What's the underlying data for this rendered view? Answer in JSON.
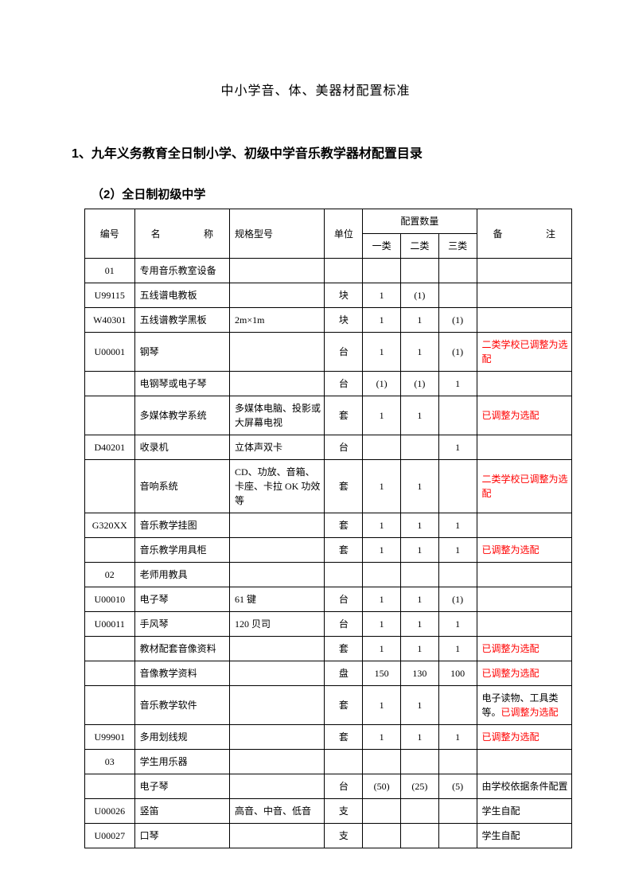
{
  "doc_title": "中小学音、体、美器材配置标准",
  "section_title": "1、九年义务教育全日制小学、初级中学音乐教学器材配置目录",
  "sub_title": "（2）全日制初级中学",
  "headers": {
    "id": "编号",
    "name": "名　　称",
    "spec": "规格型号",
    "unit": "单位",
    "qty_group": "配置数量",
    "qty1": "一类",
    "qty2": "二类",
    "qty3": "三类",
    "note": "备　　注"
  },
  "rows": [
    {
      "id": "01",
      "name": "专用音乐教室设备",
      "spec": "",
      "unit": "",
      "q1": "",
      "q2": "",
      "q3": "",
      "note": "",
      "noteType": "plain"
    },
    {
      "id": "U99115",
      "name": "五线谱电教板",
      "spec": "",
      "unit": "块",
      "q1": "1",
      "q2": "(1)",
      "q3": "",
      "note": "",
      "noteType": "plain"
    },
    {
      "id": "W40301",
      "name": "五线谱教学黑板",
      "spec": "2m×1m",
      "unit": "块",
      "q1": "1",
      "q2": "1",
      "q3": "(1)",
      "note": "",
      "noteType": "plain"
    },
    {
      "id": "U00001",
      "name": "钢琴",
      "spec": "",
      "unit": "台",
      "q1": "1",
      "q2": "1",
      "q3": "(1)",
      "note": "二类学校已调整为选配",
      "noteType": "red"
    },
    {
      "id": "",
      "name": "电钢琴或电子琴",
      "spec": "",
      "unit": "台",
      "q1": "(1)",
      "q2": "(1)",
      "q3": "1",
      "note": "",
      "noteType": "plain"
    },
    {
      "id": "",
      "name": "多媒体教学系统",
      "spec": "多媒体电脑、投影或大屏幕电视",
      "unit": "套",
      "q1": "1",
      "q2": "1",
      "q3": "",
      "note": "已调整为选配",
      "noteType": "red"
    },
    {
      "id": "D40201",
      "name": "收录机",
      "spec": "立体声双卡",
      "unit": "台",
      "q1": "",
      "q2": "",
      "q3": "1",
      "note": "",
      "noteType": "plain"
    },
    {
      "id": "",
      "name": "音响系统",
      "spec": "CD、功放、音箱、卡座、卡拉 OK 功效等",
      "unit": "套",
      "q1": "1",
      "q2": "1",
      "q3": "",
      "note": "二类学校已调整为选配",
      "noteType": "red"
    },
    {
      "id": "G320XX",
      "name": "音乐教学挂图",
      "spec": "",
      "unit": "套",
      "q1": "1",
      "q2": "1",
      "q3": "1",
      "note": "",
      "noteType": "plain"
    },
    {
      "id": "",
      "name": "音乐教学用具柜",
      "spec": "",
      "unit": "套",
      "q1": "1",
      "q2": "1",
      "q3": "1",
      "note": "已调整为选配",
      "noteType": "red"
    },
    {
      "id": "02",
      "name": "老师用教具",
      "spec": "",
      "unit": "",
      "q1": "",
      "q2": "",
      "q3": "",
      "note": "",
      "noteType": "plain"
    },
    {
      "id": "U00010",
      "name": "电子琴",
      "spec": "61 键",
      "unit": "台",
      "q1": "1",
      "q2": "1",
      "q3": "(1)",
      "note": "",
      "noteType": "plain"
    },
    {
      "id": "U00011",
      "name": "手风琴",
      "spec": "120 贝司",
      "unit": "台",
      "q1": "1",
      "q2": "1",
      "q3": "1",
      "note": "",
      "noteType": "plain"
    },
    {
      "id": "",
      "name": "教材配套音像资料",
      "spec": "",
      "unit": "套",
      "q1": "1",
      "q2": "1",
      "q3": "1",
      "note": "已调整为选配",
      "noteType": "red"
    },
    {
      "id": "",
      "name": "音像教学资料",
      "spec": "",
      "unit": "盘",
      "q1": "150",
      "q2": "130",
      "q3": "100",
      "note": "已调整为选配",
      "noteType": "red"
    },
    {
      "id": "",
      "name": "音乐教学软件",
      "spec": "",
      "unit": "套",
      "q1": "1",
      "q2": "1",
      "q3": "",
      "noteBlack": "电子读物、工具类等。",
      "noteRed": "已调整为选配",
      "noteType": "mixed"
    },
    {
      "id": "U99901",
      "name": "多用划线规",
      "spec": "",
      "unit": "套",
      "q1": "1",
      "q2": "1",
      "q3": "1",
      "note": "已调整为选配",
      "noteType": "red"
    },
    {
      "id": "03",
      "name": "学生用乐器",
      "spec": "",
      "unit": "",
      "q1": "",
      "q2": "",
      "q3": "",
      "note": "",
      "noteType": "plain"
    },
    {
      "id": "",
      "name": "电子琴",
      "spec": "",
      "unit": "台",
      "q1": "(50)",
      "q2": "(25)",
      "q3": "(5)",
      "note": "由学校依据条件配置",
      "noteType": "plain"
    },
    {
      "id": "U00026",
      "name": "竖笛",
      "spec": "高音、中音、低音",
      "unit": "支",
      "q1": "",
      "q2": "",
      "q3": "",
      "note": "学生自配",
      "noteType": "plain"
    },
    {
      "id": "U00027",
      "name": "口琴",
      "spec": "",
      "unit": "支",
      "q1": "",
      "q2": "",
      "q3": "",
      "note": "学生自配",
      "noteType": "plain"
    }
  ]
}
